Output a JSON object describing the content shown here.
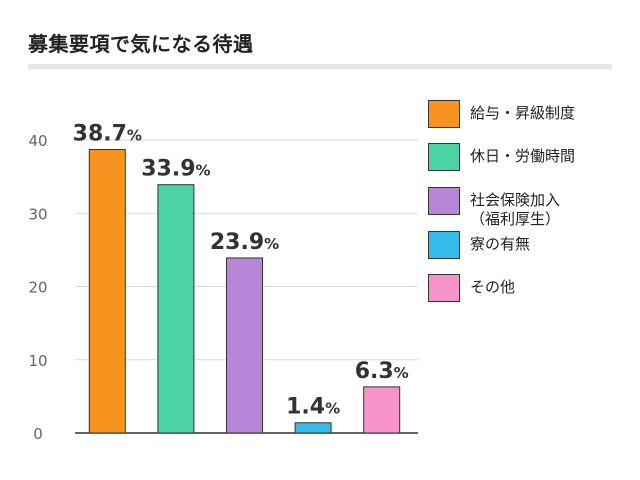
{
  "title": "募集要項で気になる待遇",
  "chart_data": {
    "type": "bar",
    "categories": [
      "給与・昇級制度",
      "休日・労働時間",
      "社会保険加入\n（福利厚生）",
      "寮の有無",
      "その他"
    ],
    "values": [
      38.7,
      33.9,
      23.9,
      1.4,
      6.3
    ],
    "value_labels": [
      "38.7",
      "33.9",
      "23.9",
      "1.4",
      "6.3"
    ],
    "value_unit": "%",
    "colors": [
      "#f7931e",
      "#4cd3a3",
      "#b886d8",
      "#36b9eb",
      "#f793c9"
    ],
    "ylim": [
      0,
      40
    ],
    "yticks": [
      "0",
      "10",
      "20",
      "30",
      "40"
    ],
    "grid": true,
    "legend_position": "right"
  }
}
